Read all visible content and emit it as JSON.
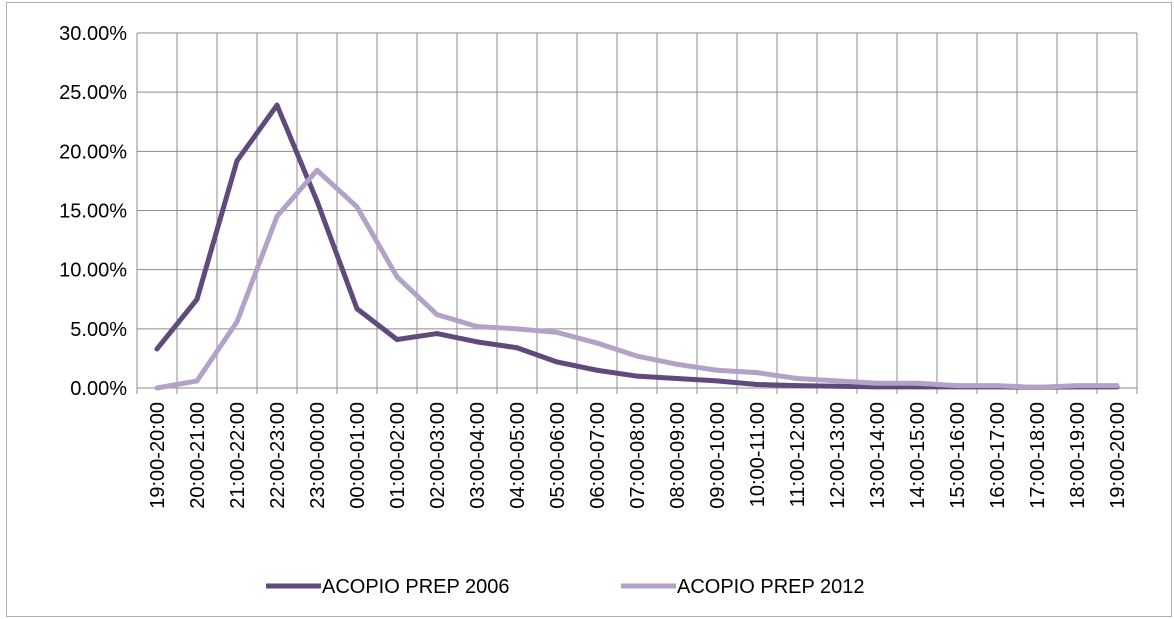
{
  "chart_data": {
    "type": "line",
    "title": "",
    "xlabel": "",
    "ylabel": "",
    "ylim": [
      0,
      0.3
    ],
    "y_tick_labels": [
      "0.00%",
      "5.00%",
      "10.00%",
      "15.00%",
      "20.00%",
      "25.00%",
      "30.00%"
    ],
    "y_tick_values": [
      0,
      0.05,
      0.1,
      0.15,
      0.2,
      0.25,
      0.3
    ],
    "grid": true,
    "legend_position": "bottom",
    "categories": [
      "19:00-20:00",
      "20:00-21:00",
      "21:00-22:00",
      "22:00-23:00",
      "23:00-00:00",
      "00:00-01:00",
      "01:00-02:00",
      "02:00-03:00",
      "03:00-04:00",
      "04:00-05:00",
      "05:00-06:00",
      "06:00-07:00",
      "07:00-08:00",
      "08:00-09:00",
      "09:00-10:00",
      "10:00-11:00",
      "11:00-12:00",
      "12:00-13:00",
      "13:00-14:00",
      "14:00-15:00",
      "15:00-16:00",
      "16:00-17:00",
      "17:00-18:00",
      "18:00-19:00",
      "19:00-20:00"
    ],
    "series": [
      {
        "name": "ACOPIO PREP 2006",
        "color": "#604a7b",
        "values": [
          0.033,
          0.075,
          0.192,
          0.239,
          0.158,
          0.067,
          0.041,
          0.046,
          0.039,
          0.034,
          0.022,
          0.015,
          0.01,
          0.008,
          0.006,
          0.003,
          0.002,
          0.0015,
          0.001,
          0.001,
          0.001,
          0.001,
          0.0005,
          0.001,
          0.001
        ]
      },
      {
        "name": "ACOPIO PREP 2012",
        "color": "#b3a2c7",
        "values": [
          0.0,
          0.006,
          0.056,
          0.145,
          0.184,
          0.153,
          0.094,
          0.062,
          0.052,
          0.05,
          0.047,
          0.038,
          0.027,
          0.02,
          0.015,
          0.013,
          0.008,
          0.006,
          0.004,
          0.004,
          0.002,
          0.002,
          0.0005,
          0.002,
          0.002
        ]
      }
    ]
  }
}
